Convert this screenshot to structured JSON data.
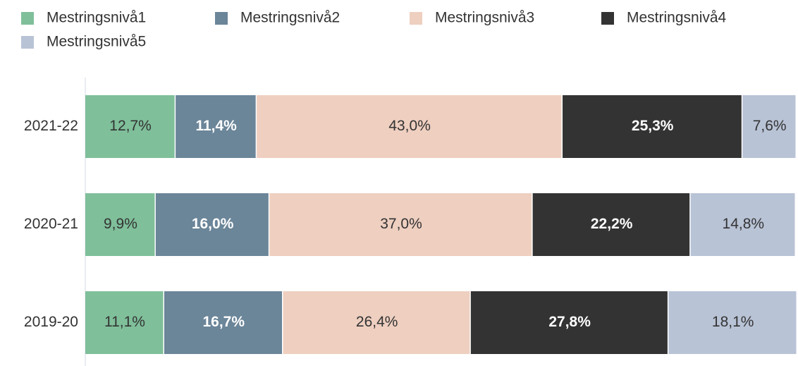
{
  "chart_data": {
    "type": "stacked_bar_horizontal",
    "categories": [
      "2021-22",
      "2020-21",
      "2019-20"
    ],
    "series": [
      {
        "name": "Mestringsnivå1",
        "color": "#7fbf9a",
        "values": [
          12.7,
          9.9,
          11.1
        ],
        "value_labels": [
          "12,7%",
          "9,9%",
          "11,1%"
        ]
      },
      {
        "name": "Mestringsnivå2",
        "color": "#6b8599",
        "values": [
          11.4,
          16.0,
          16.7
        ],
        "value_labels": [
          "11,4%",
          "16,0%",
          "16,7%"
        ]
      },
      {
        "name": "Mestringsnivå3",
        "color": "#eecfc0",
        "values": [
          43.0,
          37.0,
          26.4
        ],
        "value_labels": [
          "43,0%",
          "37,0%",
          "26,4%"
        ]
      },
      {
        "name": "Mestringsnivå4",
        "color": "#333333",
        "values": [
          25.3,
          22.2,
          27.8
        ],
        "value_labels": [
          "25,3%",
          "22,2%",
          "27,8%"
        ]
      },
      {
        "name": "Mestringsnivå5",
        "color": "#b9c3d6",
        "values": [
          7.6,
          14.8,
          18.1
        ],
        "value_labels": [
          "7,6%",
          "14,8%",
          "18,1%"
        ]
      }
    ],
    "xlim": [
      0,
      100
    ]
  }
}
